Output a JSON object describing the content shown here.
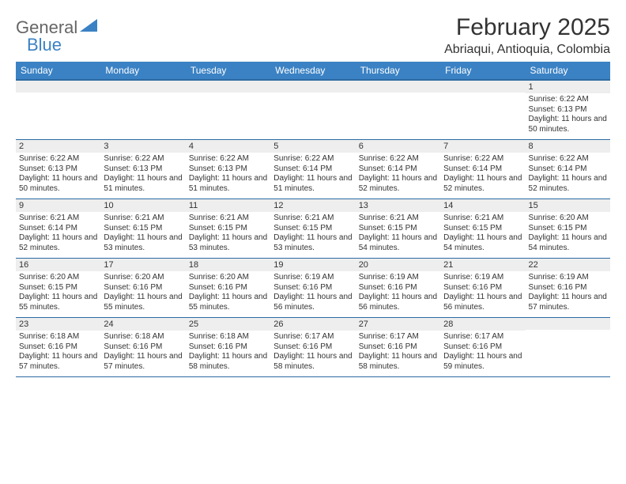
{
  "logo": {
    "part1": "General",
    "part2": "Blue"
  },
  "title": "February 2025",
  "subtitle": "Abriaqui, Antioquia, Colombia",
  "colors": {
    "header_bg": "#3b82c4",
    "header_border": "#2d6aa3",
    "daynum_bg": "#eeeeee",
    "text": "#333333",
    "logo_gray": "#666666",
    "logo_blue": "#3b82c4"
  },
  "typography": {
    "title_fontsize": 30,
    "subtitle_fontsize": 16,
    "dayheader_fontsize": 12,
    "daynum_fontsize": 11,
    "content_fontsize": 10
  },
  "day_names": [
    "Sunday",
    "Monday",
    "Tuesday",
    "Wednesday",
    "Thursday",
    "Friday",
    "Saturday"
  ],
  "weeks": [
    [
      {
        "num": "",
        "lines": []
      },
      {
        "num": "",
        "lines": []
      },
      {
        "num": "",
        "lines": []
      },
      {
        "num": "",
        "lines": []
      },
      {
        "num": "",
        "lines": []
      },
      {
        "num": "",
        "lines": []
      },
      {
        "num": "1",
        "lines": [
          "Sunrise: 6:22 AM",
          "Sunset: 6:13 PM",
          "Daylight: 11 hours and 50 minutes."
        ]
      }
    ],
    [
      {
        "num": "2",
        "lines": [
          "Sunrise: 6:22 AM",
          "Sunset: 6:13 PM",
          "Daylight: 11 hours and 50 minutes."
        ]
      },
      {
        "num": "3",
        "lines": [
          "Sunrise: 6:22 AM",
          "Sunset: 6:13 PM",
          "Daylight: 11 hours and 51 minutes."
        ]
      },
      {
        "num": "4",
        "lines": [
          "Sunrise: 6:22 AM",
          "Sunset: 6:13 PM",
          "Daylight: 11 hours and 51 minutes."
        ]
      },
      {
        "num": "5",
        "lines": [
          "Sunrise: 6:22 AM",
          "Sunset: 6:14 PM",
          "Daylight: 11 hours and 51 minutes."
        ]
      },
      {
        "num": "6",
        "lines": [
          "Sunrise: 6:22 AM",
          "Sunset: 6:14 PM",
          "Daylight: 11 hours and 52 minutes."
        ]
      },
      {
        "num": "7",
        "lines": [
          "Sunrise: 6:22 AM",
          "Sunset: 6:14 PM",
          "Daylight: 11 hours and 52 minutes."
        ]
      },
      {
        "num": "8",
        "lines": [
          "Sunrise: 6:22 AM",
          "Sunset: 6:14 PM",
          "Daylight: 11 hours and 52 minutes."
        ]
      }
    ],
    [
      {
        "num": "9",
        "lines": [
          "Sunrise: 6:21 AM",
          "Sunset: 6:14 PM",
          "Daylight: 11 hours and 52 minutes."
        ]
      },
      {
        "num": "10",
        "lines": [
          "Sunrise: 6:21 AM",
          "Sunset: 6:15 PM",
          "Daylight: 11 hours and 53 minutes."
        ]
      },
      {
        "num": "11",
        "lines": [
          "Sunrise: 6:21 AM",
          "Sunset: 6:15 PM",
          "Daylight: 11 hours and 53 minutes."
        ]
      },
      {
        "num": "12",
        "lines": [
          "Sunrise: 6:21 AM",
          "Sunset: 6:15 PM",
          "Daylight: 11 hours and 53 minutes."
        ]
      },
      {
        "num": "13",
        "lines": [
          "Sunrise: 6:21 AM",
          "Sunset: 6:15 PM",
          "Daylight: 11 hours and 54 minutes."
        ]
      },
      {
        "num": "14",
        "lines": [
          "Sunrise: 6:21 AM",
          "Sunset: 6:15 PM",
          "Daylight: 11 hours and 54 minutes."
        ]
      },
      {
        "num": "15",
        "lines": [
          "Sunrise: 6:20 AM",
          "Sunset: 6:15 PM",
          "Daylight: 11 hours and 54 minutes."
        ]
      }
    ],
    [
      {
        "num": "16",
        "lines": [
          "Sunrise: 6:20 AM",
          "Sunset: 6:15 PM",
          "Daylight: 11 hours and 55 minutes."
        ]
      },
      {
        "num": "17",
        "lines": [
          "Sunrise: 6:20 AM",
          "Sunset: 6:16 PM",
          "Daylight: 11 hours and 55 minutes."
        ]
      },
      {
        "num": "18",
        "lines": [
          "Sunrise: 6:20 AM",
          "Sunset: 6:16 PM",
          "Daylight: 11 hours and 55 minutes."
        ]
      },
      {
        "num": "19",
        "lines": [
          "Sunrise: 6:19 AM",
          "Sunset: 6:16 PM",
          "Daylight: 11 hours and 56 minutes."
        ]
      },
      {
        "num": "20",
        "lines": [
          "Sunrise: 6:19 AM",
          "Sunset: 6:16 PM",
          "Daylight: 11 hours and 56 minutes."
        ]
      },
      {
        "num": "21",
        "lines": [
          "Sunrise: 6:19 AM",
          "Sunset: 6:16 PM",
          "Daylight: 11 hours and 56 minutes."
        ]
      },
      {
        "num": "22",
        "lines": [
          "Sunrise: 6:19 AM",
          "Sunset: 6:16 PM",
          "Daylight: 11 hours and 57 minutes."
        ]
      }
    ],
    [
      {
        "num": "23",
        "lines": [
          "Sunrise: 6:18 AM",
          "Sunset: 6:16 PM",
          "Daylight: 11 hours and 57 minutes."
        ]
      },
      {
        "num": "24",
        "lines": [
          "Sunrise: 6:18 AM",
          "Sunset: 6:16 PM",
          "Daylight: 11 hours and 57 minutes."
        ]
      },
      {
        "num": "25",
        "lines": [
          "Sunrise: 6:18 AM",
          "Sunset: 6:16 PM",
          "Daylight: 11 hours and 58 minutes."
        ]
      },
      {
        "num": "26",
        "lines": [
          "Sunrise: 6:17 AM",
          "Sunset: 6:16 PM",
          "Daylight: 11 hours and 58 minutes."
        ]
      },
      {
        "num": "27",
        "lines": [
          "Sunrise: 6:17 AM",
          "Sunset: 6:16 PM",
          "Daylight: 11 hours and 58 minutes."
        ]
      },
      {
        "num": "28",
        "lines": [
          "Sunrise: 6:17 AM",
          "Sunset: 6:16 PM",
          "Daylight: 11 hours and 59 minutes."
        ]
      },
      {
        "num": "",
        "lines": []
      }
    ]
  ]
}
